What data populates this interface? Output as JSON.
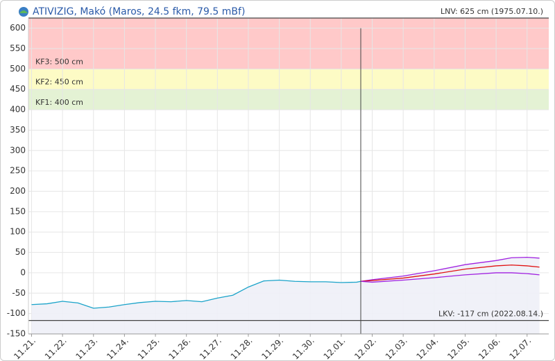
{
  "chart_data": {
    "type": "line",
    "title": "ATIVIZIG, Makó (Maros, 24.5 fkm, 79.5 mBf)",
    "xlim": [
      -0.1,
      16.7
    ],
    "xticks": [
      {
        "value": 0,
        "label": "11.21."
      },
      {
        "value": 1,
        "label": "11.22."
      },
      {
        "value": 2,
        "label": "11.23."
      },
      {
        "value": 3,
        "label": "11.24."
      },
      {
        "value": 4,
        "label": "11.25."
      },
      {
        "value": 5,
        "label": "11.26."
      },
      {
        "value": 6,
        "label": "11.27."
      },
      {
        "value": 7,
        "label": "11.28."
      },
      {
        "value": 8,
        "label": "11.29."
      },
      {
        "value": 9,
        "label": "11.30."
      },
      {
        "value": 10,
        "label": "12.01."
      },
      {
        "value": 11,
        "label": "12.02."
      },
      {
        "value": 12,
        "label": "12.03."
      },
      {
        "value": 13,
        "label": "12.04."
      },
      {
        "value": 14,
        "label": "12.05."
      },
      {
        "value": 15,
        "label": "12.06."
      },
      {
        "value": 16,
        "label": "12.07."
      }
    ],
    "ylim": [
      -150,
      625
    ],
    "yticks": [
      600,
      550,
      500,
      450,
      400,
      350,
      300,
      250,
      200,
      150,
      100,
      50,
      0,
      -50,
      -100,
      -150
    ],
    "grid": true,
    "bands": [
      {
        "label": "KF3: 500 cm",
        "from": 500,
        "color": "#ffc9c9"
      },
      {
        "label": "KF2: 450 cm",
        "from": 450,
        "color": "#fdfbc5"
      },
      {
        "label": "KF1: 400 cm",
        "from": 400,
        "color": "#e4f2d4"
      }
    ],
    "reference_lines": [
      {
        "label": "LNV: 625 cm (1975.07.10.)",
        "value": 625
      },
      {
        "label": "LKV: -117 cm (2022.08.14.)",
        "value": -117
      }
    ],
    "now_x": 10.63,
    "series": [
      {
        "color": "#1aa3c9",
        "area": true,
        "x": [
          0,
          0.5,
          1,
          1.5,
          2,
          2.5,
          3,
          3.5,
          4,
          4.5,
          5,
          5.5,
          6,
          6.5,
          7,
          7.5,
          8,
          8.5,
          9,
          9.5,
          10,
          10.5,
          10.63
        ],
        "values": [
          -78,
          -76,
          -70,
          -74,
          -87,
          -84,
          -78,
          -73,
          -70,
          -71,
          -68,
          -71,
          -62,
          -55,
          -35,
          -20,
          -18,
          -21,
          -22,
          -22,
          -24,
          -23,
          -21
        ]
      },
      {
        "color": "#a020e0",
        "area": true,
        "x": [
          10.63,
          11,
          12,
          13,
          14,
          15,
          15.5,
          16,
          16.4
        ],
        "values": [
          -21,
          -17,
          -8,
          5,
          20,
          30,
          37,
          38,
          36
        ]
      },
      {
        "color": "#e01010",
        "x": [
          10.63,
          11,
          12,
          13,
          14,
          15,
          15.5,
          16,
          16.4
        ],
        "values": [
          -21,
          -19,
          -13,
          -3,
          9,
          17,
          19,
          17,
          14
        ]
      },
      {
        "color": "#a020e0",
        "x": [
          10.63,
          11,
          12,
          13,
          14,
          15,
          15.5,
          16,
          16.4
        ],
        "values": [
          -21,
          -23,
          -18,
          -12,
          -5,
          0,
          0,
          -2,
          -5
        ]
      }
    ]
  }
}
